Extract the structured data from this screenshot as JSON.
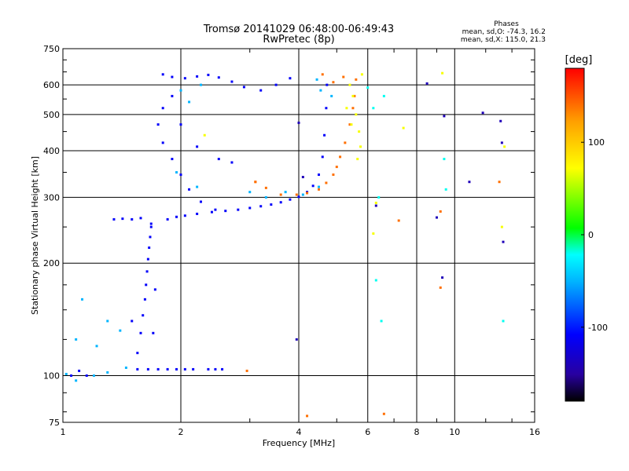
{
  "chart_data": {
    "type": "scatter",
    "title_line1": "Tromsø 20141029 06:48:00-06:49:43",
    "title_line2": "RwPretec (8p)",
    "stats": {
      "heading": "Phases",
      "line1": "mean, sd,O: -74.3, 16.2",
      "line2": "mean, sd,X: 115.0, 21.3"
    },
    "xlabel": "Frequency [MHz]",
    "ylabel": "Stationary phase Virtual Height [km]",
    "x_scale": "log",
    "y_scale": "log",
    "xlim": [
      1,
      16
    ],
    "ylim": [
      75,
      750
    ],
    "x_ticks": [
      1,
      2,
      4,
      6,
      8,
      10,
      16
    ],
    "x_tick_labels": [
      "1",
      "2",
      "4",
      "6",
      "8",
      "10",
      "16"
    ],
    "y_ticks": [
      75,
      100,
      200,
      300,
      400,
      500,
      600,
      750
    ],
    "y_tick_labels": [
      "75",
      "100",
      "200",
      "300",
      "400",
      "500",
      "600",
      "750"
    ],
    "grid": true,
    "colorbar": {
      "label": "[deg]",
      "range": [
        -180,
        180
      ],
      "ticks": [
        100,
        0,
        -100
      ],
      "tick_labels": [
        "100",
        "0",
        "-100"
      ],
      "colors": [
        "#000000",
        "#2800a0",
        "#0000ff",
        "#00b4ff",
        "#00ffff",
        "#00ff00",
        "#ffff00",
        "#ffa000",
        "#ff0000"
      ]
    },
    "series": [
      {
        "color_phase": -110,
        "points": [
          [
            1.05,
            100
          ],
          [
            1.1,
            103
          ],
          [
            1.15,
            100
          ],
          [
            1.55,
            104
          ],
          [
            1.65,
            104
          ],
          [
            1.75,
            104
          ],
          [
            1.85,
            104
          ],
          [
            1.95,
            104
          ],
          [
            2.05,
            104
          ],
          [
            2.15,
            104
          ],
          [
            2.35,
            104
          ],
          [
            2.45,
            104
          ],
          [
            2.55,
            104
          ],
          [
            1.55,
            115
          ],
          [
            1.58,
            130
          ],
          [
            1.6,
            145
          ],
          [
            1.62,
            160
          ],
          [
            1.63,
            175
          ],
          [
            1.64,
            190
          ],
          [
            1.65,
            205
          ],
          [
            1.66,
            220
          ],
          [
            1.67,
            235
          ],
          [
            1.68,
            250
          ],
          [
            1.5,
            140
          ],
          [
            1.7,
            130
          ],
          [
            1.72,
            170
          ],
          [
            1.35,
            262
          ],
          [
            1.42,
            263
          ],
          [
            1.5,
            262
          ],
          [
            1.58,
            264
          ],
          [
            1.68,
            255
          ],
          [
            1.85,
            262
          ],
          [
            1.95,
            266
          ],
          [
            2.05,
            268
          ],
          [
            2.2,
            271
          ],
          [
            2.4,
            274
          ],
          [
            2.6,
            276
          ],
          [
            2.8,
            278
          ],
          [
            3.0,
            281
          ],
          [
            3.2,
            284
          ],
          [
            3.4,
            287
          ],
          [
            3.6,
            291
          ],
          [
            3.8,
            296
          ],
          [
            4.0,
            301
          ],
          [
            4.2,
            310
          ],
          [
            4.35,
            322
          ],
          [
            4.5,
            345
          ],
          [
            4.6,
            385
          ],
          [
            4.65,
            440
          ],
          [
            4.7,
            520
          ],
          [
            4.72,
            600
          ],
          [
            1.8,
            520
          ],
          [
            1.75,
            470
          ],
          [
            1.8,
            420
          ],
          [
            1.9,
            380
          ],
          [
            2.0,
            345
          ],
          [
            2.1,
            315
          ],
          [
            2.25,
            292
          ],
          [
            2.45,
            278
          ],
          [
            1.8,
            640
          ],
          [
            1.9,
            630
          ],
          [
            2.05,
            625
          ],
          [
            2.2,
            632
          ],
          [
            2.35,
            638
          ],
          [
            2.5,
            628
          ],
          [
            2.7,
            612
          ],
          [
            2.9,
            592
          ],
          [
            3.2,
            580
          ],
          [
            3.5,
            600
          ],
          [
            3.8,
            625
          ],
          [
            1.9,
            560
          ],
          [
            2.0,
            470
          ],
          [
            2.2,
            410
          ],
          [
            2.5,
            380
          ],
          [
            2.7,
            372
          ]
        ]
      },
      {
        "color_phase": -50,
        "points": [
          [
            1.2,
            100
          ],
          [
            1.3,
            102
          ],
          [
            1.45,
            105
          ],
          [
            1.02,
            101
          ],
          [
            1.08,
            97
          ],
          [
            1.08,
            125
          ],
          [
            1.12,
            160
          ],
          [
            1.22,
            120
          ],
          [
            1.3,
            140
          ],
          [
            1.4,
            132
          ],
          [
            2.0,
            580
          ],
          [
            2.25,
            600
          ],
          [
            2.1,
            540
          ],
          [
            4.45,
            620
          ],
          [
            4.55,
            580
          ],
          [
            4.85,
            560
          ],
          [
            1.95,
            350
          ],
          [
            2.2,
            320
          ],
          [
            3.0,
            310
          ],
          [
            3.3,
            300
          ],
          [
            3.7,
            310
          ],
          [
            4.1,
            305
          ],
          [
            4.5,
            320
          ]
        ]
      },
      {
        "color_phase": 140,
        "points": [
          [
            3.95,
            305
          ],
          [
            4.2,
            308
          ],
          [
            4.5,
            315
          ],
          [
            4.7,
            328
          ],
          [
            4.9,
            345
          ],
          [
            5.0,
            362
          ],
          [
            5.1,
            385
          ],
          [
            5.25,
            420
          ],
          [
            5.4,
            470
          ],
          [
            5.5,
            520
          ],
          [
            5.55,
            560
          ],
          [
            5.6,
            620
          ],
          [
            3.1,
            330
          ],
          [
            3.3,
            318
          ],
          [
            3.6,
            305
          ],
          [
            4.6,
            640
          ],
          [
            4.9,
            610
          ],
          [
            5.2,
            630
          ],
          [
            2.95,
            103
          ],
          [
            3.1,
            330
          ],
          [
            4.2,
            78
          ],
          [
            6.6,
            79
          ],
          [
            7.2,
            260
          ],
          [
            9.2,
            172
          ],
          [
            9.2,
            275
          ],
          [
            13.0,
            330
          ]
        ]
      },
      {
        "color_phase": 70,
        "points": [
          [
            5.4,
            600
          ],
          [
            5.5,
            560
          ],
          [
            5.6,
            500
          ],
          [
            5.7,
            450
          ],
          [
            5.75,
            410
          ],
          [
            5.65,
            380
          ],
          [
            5.8,
            640
          ],
          [
            5.3,
            520
          ],
          [
            5.45,
            470
          ],
          [
            2.3,
            440
          ],
          [
            6.2,
            240
          ],
          [
            6.3,
            290
          ],
          [
            7.4,
            460
          ],
          [
            9.3,
            645
          ],
          [
            13.2,
            250
          ],
          [
            13.4,
            410
          ]
        ]
      },
      {
        "color_phase": -20,
        "points": [
          [
            6.0,
            590
          ],
          [
            6.2,
            520
          ],
          [
            6.4,
            300
          ],
          [
            6.3,
            180
          ],
          [
            6.5,
            140
          ],
          [
            9.4,
            380
          ],
          [
            9.5,
            315
          ],
          [
            13.3,
            140
          ],
          [
            6.6,
            560
          ]
        ]
      },
      {
        "color_phase": -140,
        "points": [
          [
            8.5,
            605
          ],
          [
            9.4,
            495
          ],
          [
            11.8,
            505
          ],
          [
            13.1,
            480
          ],
          [
            13.2,
            420
          ],
          [
            9.0,
            265
          ],
          [
            6.3,
            285
          ],
          [
            4.0,
            475
          ],
          [
            4.1,
            340
          ],
          [
            3.95,
            125
          ],
          [
            9.3,
            183
          ],
          [
            13.3,
            228
          ],
          [
            10.9,
            330
          ]
        ]
      }
    ]
  }
}
